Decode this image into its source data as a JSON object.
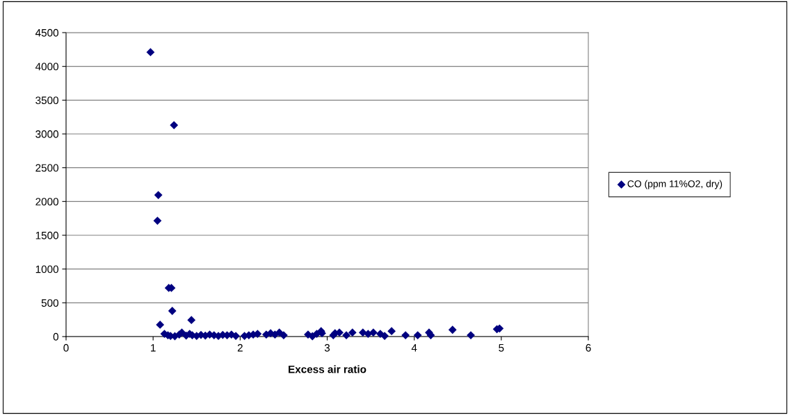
{
  "chart_data": {
    "type": "scatter",
    "xlabel": "Excess air ratio",
    "series": [
      {
        "name": "CO (ppm 11%O2, dry)",
        "color": "#000080",
        "x": [
          0.97,
          1.24,
          1.06,
          1.05,
          1.18,
          1.21,
          1.22,
          1.08,
          1.44,
          1.13,
          1.17,
          1.2,
          1.25,
          1.3,
          1.33,
          1.38,
          1.42,
          1.45,
          1.5,
          1.55,
          1.6,
          1.65,
          1.7,
          1.75,
          1.8,
          1.85,
          1.9,
          1.95,
          2.05,
          2.1,
          2.15,
          2.2,
          2.3,
          2.35,
          2.4,
          2.45,
          2.5,
          2.78,
          2.83,
          2.88,
          2.93,
          2.94,
          3.07,
          3.09,
          3.14,
          3.22,
          3.29,
          3.41,
          3.47,
          3.53,
          3.61,
          3.66,
          3.74,
          3.9,
          4.04,
          4.17,
          4.19,
          4.44,
          4.65,
          4.95,
          4.98
        ],
        "values": [
          4210,
          3130,
          2095,
          1715,
          720,
          720,
          380,
          175,
          245,
          40,
          20,
          10,
          5,
          30,
          60,
          15,
          40,
          20,
          10,
          25,
          15,
          30,
          20,
          10,
          25,
          20,
          30,
          10,
          10,
          20,
          30,
          40,
          30,
          50,
          30,
          60,
          20,
          30,
          5,
          40,
          80,
          50,
          20,
          50,
          60,
          20,
          60,
          60,
          40,
          60,
          40,
          10,
          80,
          20,
          20,
          60,
          20,
          100,
          20,
          110,
          120
        ]
      }
    ],
    "xlim": [
      0,
      6
    ],
    "xticks": [
      0,
      1,
      2,
      3,
      4,
      5,
      6
    ],
    "ylim": [
      0,
      4500
    ],
    "yticks": [
      0,
      500,
      1000,
      1500,
      2000,
      2500,
      3000,
      3500,
      4000,
      4500
    ],
    "grid": "y",
    "legend": "right",
    "marker": "diamond"
  }
}
